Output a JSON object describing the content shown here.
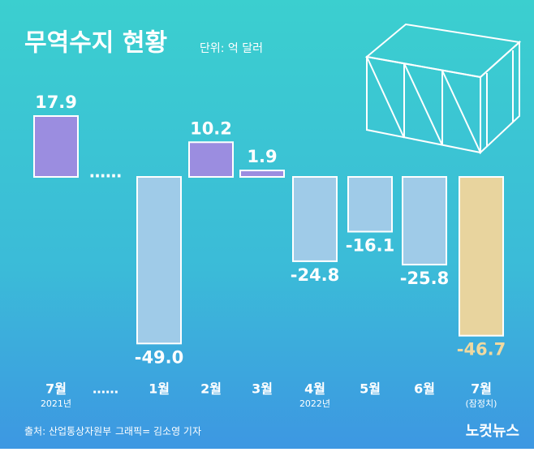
{
  "chart_data": {
    "type": "bar",
    "title": "무역수지 현황",
    "unit": "단위: 억 달러",
    "categories": [
      "7월",
      "……",
      "1월",
      "2월",
      "3월",
      "4월",
      "5월",
      "6월",
      "7월"
    ],
    "sublabels": [
      "2021년",
      null,
      null,
      null,
      null,
      "2022년",
      null,
      null,
      "(잠정치)"
    ],
    "values": [
      17.9,
      null,
      -49.0,
      10.2,
      1.9,
      -24.8,
      -16.1,
      -25.8,
      -46.7
    ],
    "value_labels": [
      "17.9",
      null,
      "-49.0",
      "10.2",
      "1.9",
      "-24.8",
      "-16.1",
      "-25.8",
      "-46.7"
    ],
    "colors": [
      "#9b8de0",
      null,
      "#9fcbe8",
      "#9b8de0",
      "#9b8de0",
      "#9fcbe8",
      "#9fcbe8",
      "#9fcbe8",
      "#e8d49e"
    ],
    "source": "출처: 산업통상자원부",
    "credit": "그래픽= 김소영 기자",
    "logo": "노컷뉴스"
  }
}
